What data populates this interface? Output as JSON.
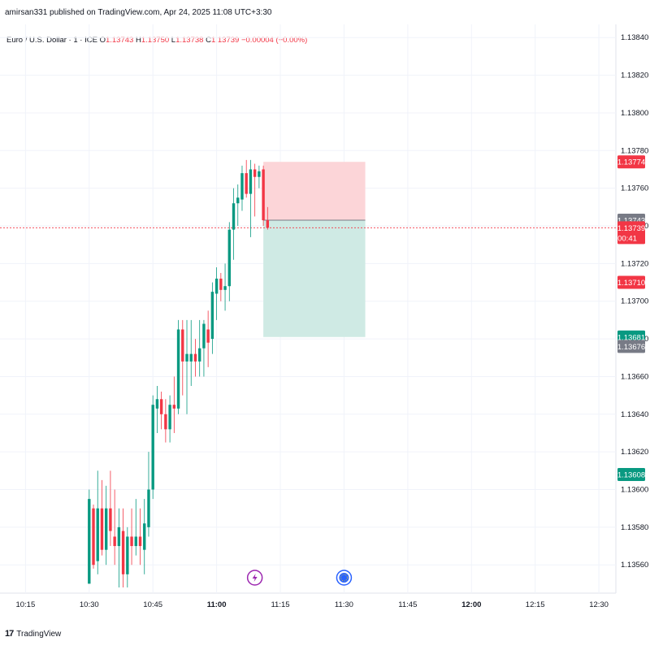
{
  "header": {
    "text": "amirsan331 published on TradingView.com, Apr 24, 2025 11:08 UTC+3:30"
  },
  "symbol": {
    "name": "Euro / U.S. Dollar · 1 · ICE",
    "o_label": "O",
    "o_value": "1.13743",
    "h_label": "H",
    "h_value": "1.13750",
    "l_label": "L",
    "l_value": "1.13738",
    "c_label": "C",
    "c_value": "1.13739",
    "change": "−0.00004 (−0.00%)"
  },
  "footer": {
    "brand": "TradingView"
  },
  "colors": {
    "up": "#089981",
    "down": "#f23645",
    "grid": "#f0f3fa",
    "stop_zone": "#fcd5d8",
    "target_zone": "#cfeae4"
  },
  "chart_data": {
    "type": "candlestick",
    "y_range": [
      1.13545,
      1.13847
    ],
    "x_range_minutes": [
      "10:09",
      "12:34"
    ],
    "y_ticks": [
      "1.13840",
      "1.13820",
      "1.13800",
      "1.13780",
      "1.13760",
      "1.13740",
      "1.13720",
      "1.13700",
      "1.13680",
      "1.13660",
      "1.13640",
      "1.13620",
      "1.13600",
      "1.13580",
      "1.13560"
    ],
    "x_ticks": [
      "10:15",
      "10:30",
      "10:45",
      "11:00",
      "11:15",
      "11:30",
      "11:45",
      "12:00",
      "12:15",
      "12:30"
    ],
    "bold_x_ticks": [
      "11:00",
      "12:00"
    ],
    "candles": [
      {
        "t": "10:30",
        "o": 1.1355,
        "h": 1.136,
        "l": 1.1355,
        "c": 1.13595
      },
      {
        "t": "10:31",
        "o": 1.1359,
        "h": 1.13592,
        "l": 1.13558,
        "c": 1.1356
      },
      {
        "t": "10:32",
        "o": 1.13562,
        "h": 1.1361,
        "l": 1.13555,
        "c": 1.1359
      },
      {
        "t": "10:33",
        "o": 1.1359,
        "h": 1.13605,
        "l": 1.13565,
        "c": 1.13568
      },
      {
        "t": "10:34",
        "o": 1.13568,
        "h": 1.13602,
        "l": 1.1356,
        "c": 1.1359
      },
      {
        "t": "10:35",
        "o": 1.1359,
        "h": 1.1361,
        "l": 1.1357,
        "c": 1.13578
      },
      {
        "t": "10:36",
        "o": 1.13575,
        "h": 1.136,
        "l": 1.1356,
        "c": 1.1357
      },
      {
        "t": "10:37",
        "o": 1.1357,
        "h": 1.1359,
        "l": 1.13548,
        "c": 1.1358
      },
      {
        "t": "10:38",
        "o": 1.13578,
        "h": 1.1359,
        "l": 1.13548,
        "c": 1.13555
      },
      {
        "t": "10:39",
        "o": 1.13555,
        "h": 1.1358,
        "l": 1.13548,
        "c": 1.13575
      },
      {
        "t": "10:40",
        "o": 1.13575,
        "h": 1.1359,
        "l": 1.1356,
        "c": 1.1357
      },
      {
        "t": "10:41",
        "o": 1.1357,
        "h": 1.13595,
        "l": 1.13565,
        "c": 1.13575
      },
      {
        "t": "10:42",
        "o": 1.13575,
        "h": 1.1359,
        "l": 1.1356,
        "c": 1.1357
      },
      {
        "t": "10:43",
        "o": 1.13568,
        "h": 1.13595,
        "l": 1.13555,
        "c": 1.13582
      },
      {
        "t": "10:44",
        "o": 1.1358,
        "h": 1.1362,
        "l": 1.13575,
        "c": 1.136
      },
      {
        "t": "10:45",
        "o": 1.136,
        "h": 1.1365,
        "l": 1.13595,
        "c": 1.13645
      },
      {
        "t": "10:46",
        "o": 1.13643,
        "h": 1.13655,
        "l": 1.1363,
        "c": 1.13648
      },
      {
        "t": "10:47",
        "o": 1.13648,
        "h": 1.13652,
        "l": 1.13632,
        "c": 1.1364
      },
      {
        "t": "10:48",
        "o": 1.1364,
        "h": 1.13648,
        "l": 1.13625,
        "c": 1.13632
      },
      {
        "t": "10:49",
        "o": 1.13632,
        "h": 1.1365,
        "l": 1.13625,
        "c": 1.13645
      },
      {
        "t": "10:50",
        "o": 1.13645,
        "h": 1.1366,
        "l": 1.1363,
        "c": 1.13643
      },
      {
        "t": "10:51",
        "o": 1.13643,
        "h": 1.1369,
        "l": 1.1364,
        "c": 1.13685
      },
      {
        "t": "10:52",
        "o": 1.13685,
        "h": 1.1369,
        "l": 1.1365,
        "c": 1.13668
      },
      {
        "t": "10:53",
        "o": 1.13668,
        "h": 1.1369,
        "l": 1.1364,
        "c": 1.13672
      },
      {
        "t": "10:54",
        "o": 1.13668,
        "h": 1.1369,
        "l": 1.13655,
        "c": 1.13672
      },
      {
        "t": "10:55",
        "o": 1.13672,
        "h": 1.1368,
        "l": 1.1366,
        "c": 1.13668
      },
      {
        "t": "10:56",
        "o": 1.13668,
        "h": 1.1369,
        "l": 1.1366,
        "c": 1.13675
      },
      {
        "t": "10:57",
        "o": 1.13675,
        "h": 1.1369,
        "l": 1.1366,
        "c": 1.13688
      },
      {
        "t": "10:58",
        "o": 1.13685,
        "h": 1.13695,
        "l": 1.13665,
        "c": 1.13678
      },
      {
        "t": "10:59",
        "o": 1.1368,
        "h": 1.1371,
        "l": 1.13672,
        "c": 1.13705
      },
      {
        "t": "11:00",
        "o": 1.13704,
        "h": 1.13718,
        "l": 1.1369,
        "c": 1.13712
      },
      {
        "t": "11:01",
        "o": 1.13712,
        "h": 1.13715,
        "l": 1.137,
        "c": 1.13706
      },
      {
        "t": "11:02",
        "o": 1.13706,
        "h": 1.1372,
        "l": 1.13695,
        "c": 1.13708
      },
      {
        "t": "11:03",
        "o": 1.13708,
        "h": 1.13742,
        "l": 1.137,
        "c": 1.13738
      },
      {
        "t": "11:04",
        "o": 1.13738,
        "h": 1.1376,
        "l": 1.13722,
        "c": 1.13752
      },
      {
        "t": "11:05",
        "o": 1.13752,
        "h": 1.13762,
        "l": 1.1374,
        "c": 1.13755
      },
      {
        "t": "11:06",
        "o": 1.13754,
        "h": 1.13772,
        "l": 1.13748,
        "c": 1.13768
      },
      {
        "t": "11:07",
        "o": 1.13768,
        "h": 1.13775,
        "l": 1.13755,
        "c": 1.13757
      },
      {
        "t": "11:08",
        "o": 1.13757,
        "h": 1.13775,
        "l": 1.13734,
        "c": 1.1377
      },
      {
        "t": "11:09",
        "o": 1.1377,
        "h": 1.13773,
        "l": 1.13745,
        "c": 1.13766
      },
      {
        "t": "11:10",
        "o": 1.13766,
        "h": 1.13772,
        "l": 1.1376,
        "c": 1.13769
      },
      {
        "t": "11:11",
        "o": 1.1377,
        "h": 1.13772,
        "l": 1.1374,
        "c": 1.13743
      },
      {
        "t": "11:12",
        "o": 1.13743,
        "h": 1.1375,
        "l": 1.13738,
        "c": 1.13739
      }
    ],
    "position": {
      "start": "11:11",
      "end": "11:35",
      "stop": 1.13774,
      "entry": 1.13743,
      "target": 1.13681
    },
    "current_price_line": 1.13739,
    "price_badges": [
      {
        "label": "1.13774",
        "price": 1.13774,
        "color": "#f23645"
      },
      {
        "label": "1.13743",
        "price": 1.13743,
        "color": "#787b86"
      },
      {
        "label": "1.13739",
        "price": 1.13739,
        "color": "#f23645",
        "sub": "00:41"
      },
      {
        "label": "1.13710",
        "price": 1.1371,
        "color": "#f23645"
      },
      {
        "label": "1.13681",
        "price": 1.13681,
        "color": "#089981"
      },
      {
        "label": "1.13676",
        "price": 1.13676,
        "color": "#787b86"
      },
      {
        "label": "1.13608",
        "price": 1.13608,
        "color": "#089981"
      }
    ],
    "event_markers": [
      {
        "t": "11:09",
        "icon": "lightning-icon",
        "color": "#9c27b0"
      },
      {
        "t": "11:30",
        "icon": "flag-eu-icon",
        "color": "#2962ff"
      }
    ]
  }
}
